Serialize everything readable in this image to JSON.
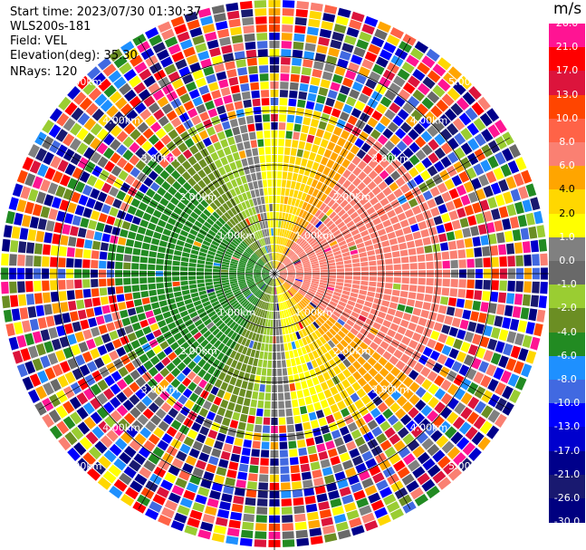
{
  "header": {
    "start_time": "Start time: 2023/07/30 01:30:37",
    "instrument": "WLS200s-181",
    "field": "Field: VEL",
    "elevation": "Elevation(deg): 35.30",
    "nrays": "NRays: 120"
  },
  "colorbar": {
    "unit": "m/s",
    "labels": [
      "26.0",
      "21.0",
      "17.0",
      "13.0",
      "10.0",
      "8.0",
      "6.0",
      "4.0",
      "2.0",
      "1.0",
      "0.0",
      "-1.0",
      "-2.0",
      "-4.0",
      "-6.0",
      "-8.0",
      "-10.0",
      "-13.0",
      "-17.0",
      "-21.0",
      "-26.0",
      "-30.0"
    ],
    "colors": [
      "#ff1493",
      "#ff0000",
      "#dc143c",
      "#ff4500",
      "#ff6347",
      "#fa8072",
      "#ffa500",
      "#ffd700",
      "#ffff00",
      "#808080",
      "#696969",
      "#9acd32",
      "#6b8e23",
      "#228b22",
      "#1e90ff",
      "#4169e1",
      "#0000ff",
      "#0000cd",
      "#00008b",
      "#191970",
      "#000080"
    ]
  },
  "range_rings": {
    "labels": [
      "1.00km",
      "2.00km",
      "3.00km",
      "4.00km",
      "5.00km"
    ]
  }
}
